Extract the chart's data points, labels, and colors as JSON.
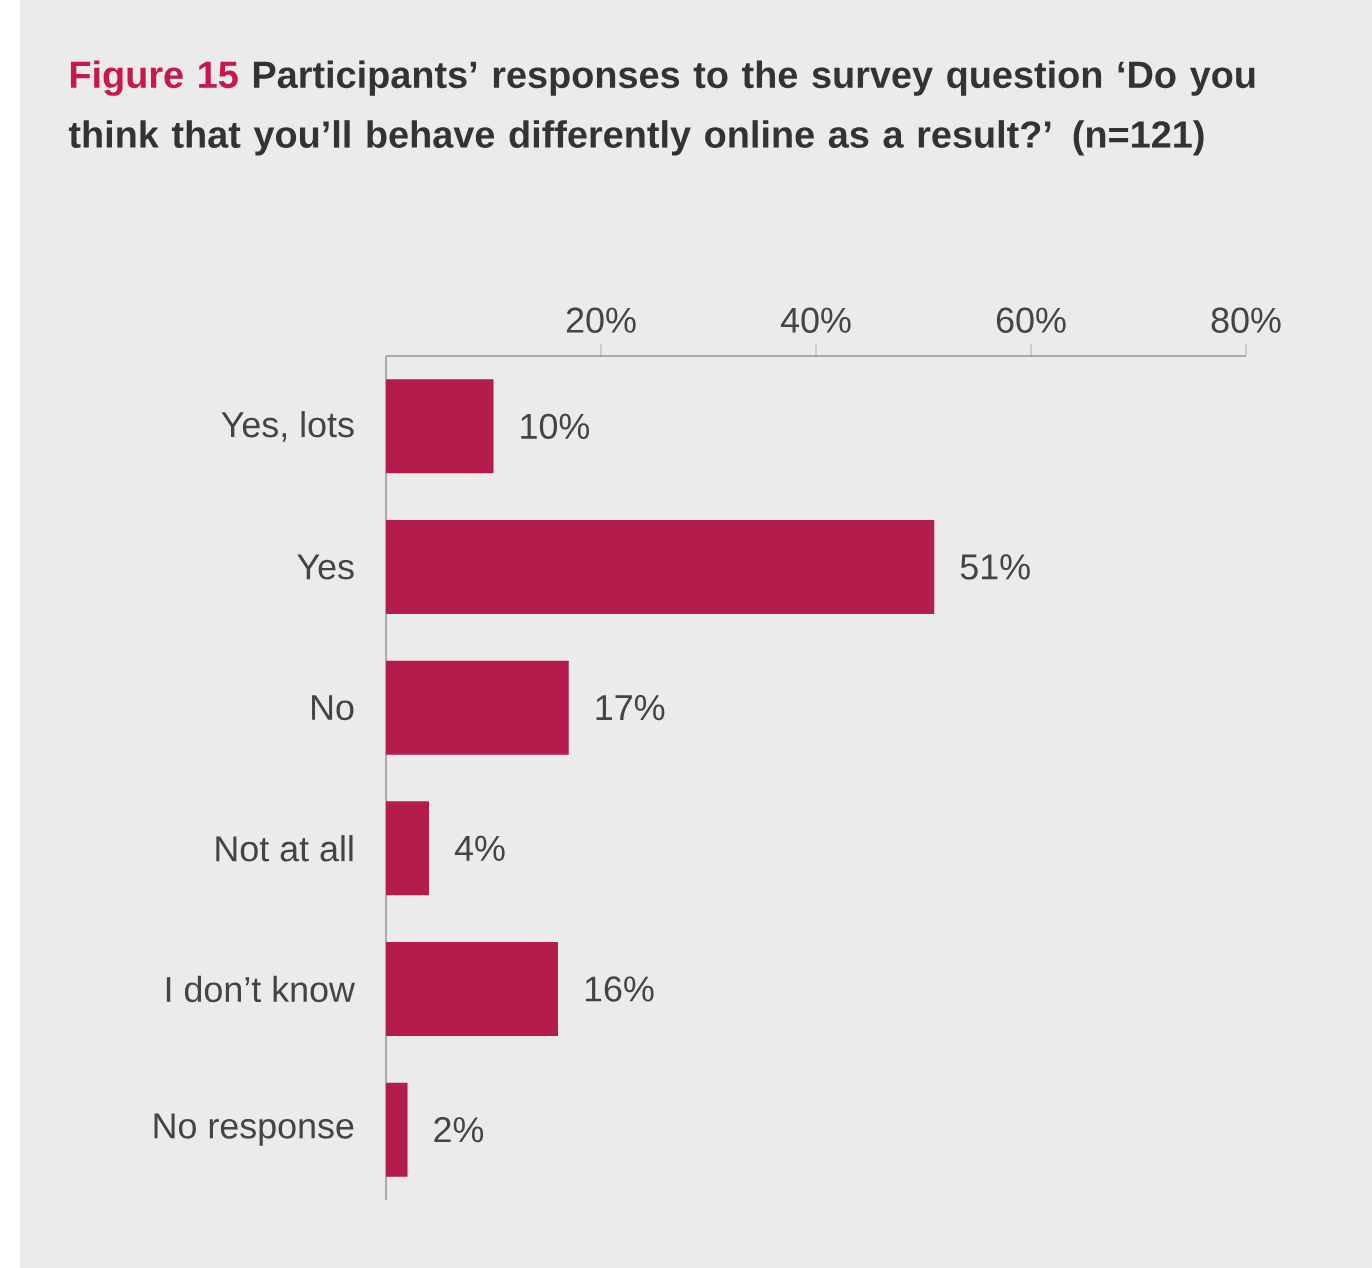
{
  "chart_data": {
    "type": "bar",
    "orientation": "horizontal",
    "title": "Figure 15",
    "subtitle": "Participants’ responses to the survey question ‘Do you think that you’ll behave differently online as a result?’ (n=121)",
    "categories": [
      "Yes, lots",
      "Yes",
      "No",
      "Not at all",
      "I don’t know",
      "No response"
    ],
    "values": [
      10,
      51,
      17,
      4,
      16,
      2
    ],
    "value_labels": [
      "10%",
      "51%",
      "17%",
      "4%",
      "16%",
      "2%"
    ],
    "color": "#b41c4c",
    "xlim": [
      0,
      80
    ],
    "xticks": [
      {
        "value": 20,
        "label": "20%"
      },
      {
        "value": 40,
        "label": "40%"
      },
      {
        "value": 60,
        "label": "60%"
      },
      {
        "value": 80,
        "label": "80%"
      }
    ]
  }
}
